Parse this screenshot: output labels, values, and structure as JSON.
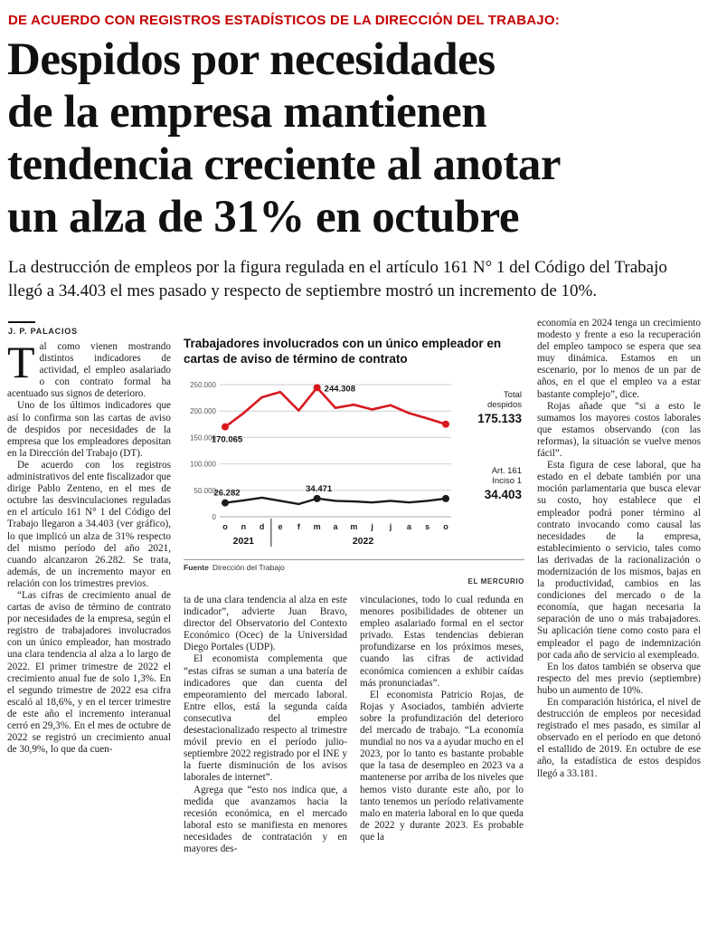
{
  "kicker": "DE ACUERDO CON REGISTROS ESTADÍSTICOS DE LA DIRECCIÓN DEL TRABAJO:",
  "headline_lines": [
    "Despidos por necesidades",
    "de la empresa mantienen",
    "tendencia creciente al anotar",
    "un alza de 31% en octubre"
  ],
  "deck": "La destrucción de empleos por la figura regulada en el artículo 161 N° 1 del Código del Trabajo llegó a 34.403 el mes pasado y respecto de septiembre mostró un incremento de 10%.",
  "byline": "J. P. PALACIOS",
  "col1": {
    "paragraphs": [
      "Tal como vienen mostrando distintos indicadores de actividad, el empleo asalariado o con contrato formal ha acentuado sus signos de deterioro.",
      "Uno de los últimos indicadores que así lo confirma son las cartas de aviso de despidos por necesidades de la empresa que los empleadores depositan en la Dirección del Trabajo (DT).",
      "De acuerdo con los registros administrativos del ente fiscalizador que dirige Pablo Zenteno, en el mes de octubre las desvinculaciones reguladas en el artículo 161 N° 1 del Código del Trabajo llegaron a 34.403 (ver gráfico), lo que implicó un alza de 31% respecto del mismo período del año 2021, cuando alcanzaron 26.282. Se trata, además, de un incremento mayor en relación con los trimestres previos.",
      "“Las cifras de crecimiento anual de cartas de aviso de término de contrato por necesidades de la empresa, según el registro de trabajadores involucrados con un único empleador, han mostrado una clara tendencia al alza a lo largo de 2022. El primer trimestre de 2022 el crecimiento anual fue de solo 1,3%. En el segundo trimestre de 2022 esa cifra escaló al 18,6%, y en el tercer trimestre de este año el incremento interanual cerró en 29,3%. En el mes de octubre de 2022 se registró un crecimiento anual de 30,9%, lo que da cuen-"
    ]
  },
  "col2": {
    "paragraphs": [
      "ta de una clara tendencia al alza en este indicador”, advierte Juan Bravo, director del Observatorio del Contexto Económico (Ocec) de la Universidad Diego Portales (UDP).",
      "El economista complementa que “estas cifras se suman a una batería de indicadores que dan cuenta del empeoramiento del mercado laboral. Entre ellos, está la segunda caída consecutiva del empleo desestacionalizado respecto al trimestre móvil previo en el período julio-septiembre 2022 registrado por el INE y la fuerte disminución de los avisos laborales de internet”.",
      "Agrega que “esto nos indica que, a medida que avanzamos hacia la recesión económica, en el mercado laboral esto se manifiesta en menores necesidades de contratación y en mayores des-"
    ]
  },
  "col3": {
    "paragraphs": [
      "vinculaciones, todo lo cual redunda en menores posibilidades de obtener un empleo asalariado formal en el sector privado. Estas tendencias debieran profundizarse en los próximos meses, cuando las cifras de actividad económica comiencen a exhibir caídas más pronunciadas”.",
      "El economista Patricio Rojas, de Rojas y Asociados, también advierte sobre la profundización del deterioro del mercado de trabajo. “La economía mundial no nos va a ayudar mucho en el 2023, por lo tanto es bastante probable que la tasa de desempleo en 2023 va a mantenerse por arriba de los niveles que hemos visto durante este año, por lo tanto tenemos un período relativamente malo en materia laboral en lo que queda de 2022 y durante 2023. Es probable que la"
    ]
  },
  "col4": {
    "paragraphs": [
      "economía en 2024 tenga un crecimiento modesto y frente a eso la recuperación del empleo tampoco se espera que sea muy dinámica. Estamos en un escenario, por lo menos de un par de años, en el que el empleo va a estar bastante complejo”, dice.",
      "Rojas añade que “si a esto le sumamos los mayores costos laborales que estamos observando (con las reformas), la situación se vuelve menos fácil”.",
      "Esta figura de cese laboral, que ha estado en el debate también por una moción parlamentaria que busca elevar su costo, hoy establece que el empleador podrá poner término al contrato invocando como causal las necesidades de la empresa, establecimiento o servicio, tales como las derivadas de la racionalización o modernización de los mismos, bajas en la productividad, cambios en las condiciones del mercado o de la economía, que hagan necesaria la separación de uno o más trabajadores. Su aplicación tiene como costo para el empleador el pago de indemnización por cada año de servicio al exempleado.",
      "En los datos también se observa que respecto del mes previo (septiembre) hubo un aumento de 10%.",
      "En comparación histórica, el nivel de destrucción de empleos por necesidad registrado el mes pasado, es similar al observado en el período en que detonó el estallido de 2019. En octubre de ese año, la estadística de estos despidos llegó a 33.181."
    ]
  },
  "chart_data": {
    "type": "line",
    "title": "Trabajadores involucrados con un único empleador en cartas de aviso de término de contrato",
    "x": [
      "o",
      "n",
      "d",
      "e",
      "f",
      "m",
      "a",
      "m",
      "j",
      "j",
      "a",
      "s",
      "o"
    ],
    "year_groups": [
      {
        "label": "2021",
        "span": 3
      },
      {
        "label": "2022",
        "span": 10
      }
    ],
    "ylim": [
      0,
      250000
    ],
    "yticks": [
      "250.000",
      "200.000",
      "150.000",
      "100.000",
      "50.000",
      "0"
    ],
    "grid": true,
    "series": [
      {
        "name": "Total despidos",
        "color": "#d71920",
        "values": [
          170065,
          196000,
          226000,
          236000,
          201000,
          244308,
          206000,
          212000,
          203000,
          211000,
          196000,
          186000,
          175133
        ],
        "dots": [
          0,
          5,
          12
        ],
        "labels": {
          "0": "170.065",
          "5": "244.308"
        }
      },
      {
        "name": "Art. 161 Inciso 1",
        "color": "#1a1a1a",
        "values": [
          26282,
          31000,
          36000,
          30000,
          24000,
          34471,
          30000,
          29000,
          27000,
          30000,
          27000,
          30000,
          34403
        ],
        "dots": [
          0,
          5,
          12
        ],
        "labels": {
          "0": "26.282",
          "5": "34.471"
        }
      }
    ],
    "legend": [
      {
        "label_lines": [
          "Total",
          "despidos"
        ],
        "value": "175.133"
      },
      {
        "label_lines": [
          "Art. 161",
          "Inciso 1"
        ],
        "value": "34.403"
      }
    ],
    "source_label": "Fuente",
    "source": "Dirección del Trabajo",
    "credit": "EL MERCURIO"
  }
}
